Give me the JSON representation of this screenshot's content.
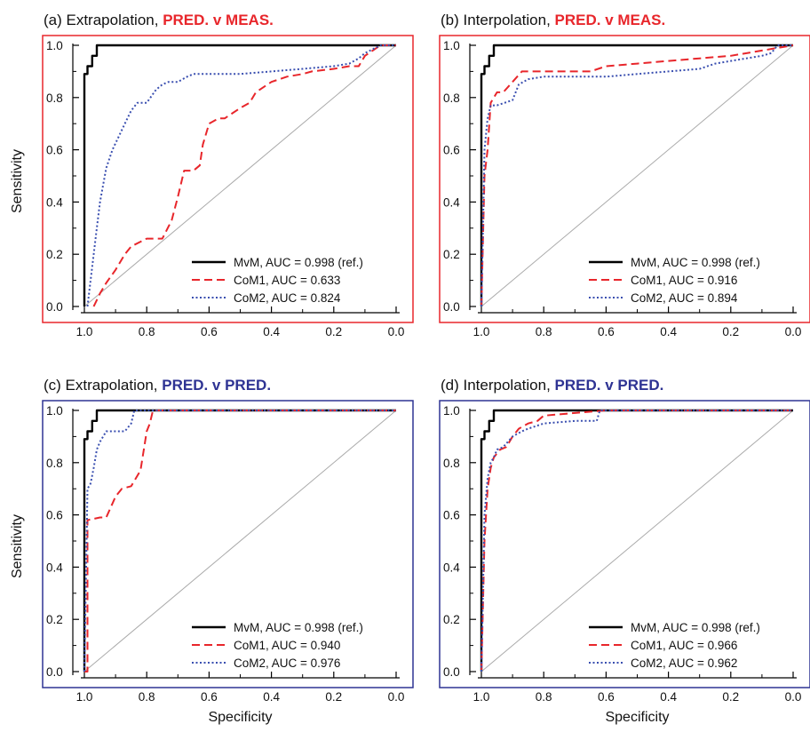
{
  "chart_data": [
    {
      "type": "line",
      "title_prefix": "(a) Extrapolation, ",
      "title_highlight": "PRED. v MEAS.",
      "highlight_color": "#e8262b",
      "frame_color": "#e8262b",
      "xlabel": "",
      "ylabel": "Sensitivity",
      "xlim": [
        1.0,
        0.0
      ],
      "ylim": [
        0.0,
        1.0
      ],
      "xticks": [
        "1.0",
        "0.8",
        "0.6",
        "0.4",
        "0.2",
        "0.0"
      ],
      "yticks": [
        "0.0",
        "0.2",
        "0.4",
        "0.6",
        "0.8",
        "1.0"
      ],
      "legend_position": "bottom-right",
      "reference_line": true,
      "series": [
        {
          "name": "MvM, AUC = 0.998 (ref.)",
          "color": "#000000",
          "dash": "solid",
          "x": [
            1.0,
            1.0,
            0.99,
            0.99,
            0.975,
            0.975,
            0.96,
            0.96,
            0.0
          ],
          "y": [
            0.0,
            0.89,
            0.89,
            0.92,
            0.92,
            0.96,
            0.96,
            1.0,
            1.0
          ]
        },
        {
          "name": "CoM1, AUC = 0.633",
          "color": "#e8262b",
          "dash": "dashed",
          "x": [
            0.97,
            0.95,
            0.93,
            0.9,
            0.87,
            0.85,
            0.8,
            0.75,
            0.72,
            0.7,
            0.68,
            0.65,
            0.63,
            0.62,
            0.6,
            0.57,
            0.55,
            0.5,
            0.47,
            0.45,
            0.4,
            0.35,
            0.3,
            0.27,
            0.2,
            0.15,
            0.12,
            0.1,
            0.05,
            0.0
          ],
          "y": [
            0.0,
            0.05,
            0.09,
            0.14,
            0.2,
            0.23,
            0.26,
            0.26,
            0.33,
            0.42,
            0.52,
            0.52,
            0.54,
            0.62,
            0.7,
            0.72,
            0.72,
            0.76,
            0.78,
            0.82,
            0.86,
            0.88,
            0.89,
            0.9,
            0.91,
            0.92,
            0.92,
            0.96,
            1.0,
            1.0
          ]
        },
        {
          "name": "CoM2, AUC = 0.824",
          "color": "#3a4fb0",
          "dash": "dotted",
          "x": [
            0.99,
            0.97,
            0.96,
            0.95,
            0.93,
            0.91,
            0.89,
            0.87,
            0.85,
            0.83,
            0.8,
            0.77,
            0.75,
            0.73,
            0.7,
            0.67,
            0.65,
            0.6,
            0.5,
            0.4,
            0.3,
            0.2,
            0.15,
            0.12,
            0.1,
            0.05,
            0.0
          ],
          "y": [
            0.0,
            0.2,
            0.3,
            0.4,
            0.53,
            0.6,
            0.65,
            0.7,
            0.75,
            0.78,
            0.78,
            0.83,
            0.85,
            0.86,
            0.86,
            0.88,
            0.89,
            0.89,
            0.89,
            0.9,
            0.91,
            0.92,
            0.93,
            0.95,
            0.97,
            1.0,
            1.0
          ]
        }
      ]
    },
    {
      "type": "line",
      "title_prefix": "(b) Interpolation, ",
      "title_highlight": "PRED. v MEAS.",
      "highlight_color": "#e8262b",
      "frame_color": "#e8262b",
      "xlabel": "",
      "ylabel": "",
      "xlim": [
        1.0,
        0.0
      ],
      "ylim": [
        0.0,
        1.0
      ],
      "xticks": [
        "1.0",
        "0.8",
        "0.6",
        "0.4",
        "0.2",
        "0.0"
      ],
      "yticks": [
        "0.0",
        "0.2",
        "0.4",
        "0.6",
        "0.8",
        "1.0"
      ],
      "legend_position": "bottom-right",
      "reference_line": true,
      "series": [
        {
          "name": "MvM, AUC = 0.998 (ref.)",
          "color": "#000000",
          "dash": "solid",
          "x": [
            1.0,
            1.0,
            0.99,
            0.99,
            0.975,
            0.975,
            0.96,
            0.96,
            0.0
          ],
          "y": [
            0.0,
            0.89,
            0.89,
            0.92,
            0.92,
            0.96,
            0.96,
            1.0,
            1.0
          ]
        },
        {
          "name": "CoM1, AUC = 0.916",
          "color": "#e8262b",
          "dash": "dashed",
          "x": [
            1.0,
            0.99,
            0.98,
            0.97,
            0.95,
            0.93,
            0.9,
            0.87,
            0.8,
            0.7,
            0.65,
            0.6,
            0.5,
            0.4,
            0.3,
            0.2,
            0.1,
            0.05,
            0.0
          ],
          "y": [
            0.0,
            0.5,
            0.6,
            0.78,
            0.82,
            0.82,
            0.86,
            0.9,
            0.9,
            0.9,
            0.9,
            0.92,
            0.93,
            0.94,
            0.95,
            0.96,
            0.98,
            0.99,
            1.0
          ]
        },
        {
          "name": "CoM2, AUC = 0.894",
          "color": "#3a4fb0",
          "dash": "dotted",
          "x": [
            1.0,
            0.99,
            0.98,
            0.97,
            0.95,
            0.9,
            0.88,
            0.85,
            0.8,
            0.7,
            0.6,
            0.5,
            0.4,
            0.3,
            0.25,
            0.2,
            0.1,
            0.07,
            0.05,
            0.0
          ],
          "y": [
            0.0,
            0.6,
            0.72,
            0.77,
            0.77,
            0.79,
            0.85,
            0.87,
            0.88,
            0.88,
            0.88,
            0.89,
            0.9,
            0.91,
            0.93,
            0.94,
            0.96,
            0.97,
            1.0,
            1.0
          ]
        }
      ]
    },
    {
      "type": "line",
      "title_prefix": "(c) Extrapolation, ",
      "title_highlight": "PRED. v PRED.",
      "highlight_color": "#2e3393",
      "frame_color": "#2e3393",
      "xlabel": "Specificity",
      "ylabel": "Sensitivity",
      "xlim": [
        1.0,
        0.0
      ],
      "ylim": [
        0.0,
        1.0
      ],
      "xticks": [
        "1.0",
        "0.8",
        "0.6",
        "0.4",
        "0.2",
        "0.0"
      ],
      "yticks": [
        "0.0",
        "0.2",
        "0.4",
        "0.6",
        "0.8",
        "1.0"
      ],
      "legend_position": "bottom-right",
      "reference_line": true,
      "series": [
        {
          "name": "MvM, AUC = 0.998 (ref.)",
          "color": "#000000",
          "dash": "solid",
          "x": [
            1.0,
            1.0,
            0.99,
            0.99,
            0.975,
            0.975,
            0.96,
            0.96,
            0.0
          ],
          "y": [
            0.0,
            0.89,
            0.89,
            0.92,
            0.92,
            0.96,
            0.96,
            1.0,
            1.0
          ]
        },
        {
          "name": "CoM1, AUC = 0.940",
          "color": "#e8262b",
          "dash": "dashed",
          "x": [
            1.0,
            0.99,
            0.99,
            0.95,
            0.93,
            0.9,
            0.88,
            0.85,
            0.82,
            0.8,
            0.79,
            0.78,
            0.0
          ],
          "y": [
            0.0,
            0.0,
            0.58,
            0.59,
            0.59,
            0.67,
            0.7,
            0.71,
            0.77,
            0.92,
            0.95,
            1.0,
            1.0
          ]
        },
        {
          "name": "CoM2, AUC = 0.976",
          "color": "#3a4fb0",
          "dash": "dotted",
          "x": [
            1.0,
            0.99,
            0.98,
            0.97,
            0.96,
            0.95,
            0.93,
            0.9,
            0.87,
            0.85,
            0.84,
            0.0
          ],
          "y": [
            0.0,
            0.7,
            0.72,
            0.78,
            0.85,
            0.88,
            0.92,
            0.92,
            0.92,
            0.95,
            1.0,
            1.0
          ]
        }
      ]
    },
    {
      "type": "line",
      "title_prefix": "(d) Interpolation, ",
      "title_highlight": "PRED. v PRED.",
      "highlight_color": "#2e3393",
      "frame_color": "#2e3393",
      "xlabel": "Specificity",
      "ylabel": "",
      "xlim": [
        1.0,
        0.0
      ],
      "ylim": [
        0.0,
        1.0
      ],
      "xticks": [
        "1.0",
        "0.8",
        "0.6",
        "0.4",
        "0.2",
        "0.0"
      ],
      "yticks": [
        "0.0",
        "0.2",
        "0.4",
        "0.6",
        "0.8",
        "1.0"
      ],
      "legend_position": "bottom-right",
      "reference_line": true,
      "series": [
        {
          "name": "MvM, AUC = 0.998 (ref.)",
          "color": "#000000",
          "dash": "solid",
          "x": [
            1.0,
            1.0,
            0.99,
            0.99,
            0.975,
            0.975,
            0.96,
            0.96,
            0.0
          ],
          "y": [
            0.0,
            0.89,
            0.89,
            0.92,
            0.92,
            0.96,
            0.96,
            1.0,
            1.0
          ]
        },
        {
          "name": "CoM1, AUC = 0.966",
          "color": "#e8262b",
          "dash": "dashed",
          "x": [
            1.0,
            0.99,
            0.98,
            0.97,
            0.96,
            0.94,
            0.92,
            0.9,
            0.88,
            0.85,
            0.82,
            0.8,
            0.7,
            0.6,
            0.0
          ],
          "y": [
            0.0,
            0.5,
            0.7,
            0.78,
            0.82,
            0.85,
            0.86,
            0.9,
            0.93,
            0.95,
            0.96,
            0.98,
            0.99,
            1.0,
            1.0
          ]
        },
        {
          "name": "CoM2, AUC = 0.962",
          "color": "#3a4fb0",
          "dash": "dotted",
          "x": [
            1.0,
            0.99,
            0.98,
            0.97,
            0.96,
            0.95,
            0.93,
            0.9,
            0.87,
            0.85,
            0.8,
            0.7,
            0.63,
            0.62,
            0.0
          ],
          "y": [
            0.0,
            0.6,
            0.74,
            0.8,
            0.82,
            0.85,
            0.86,
            0.9,
            0.92,
            0.93,
            0.95,
            0.96,
            0.96,
            1.0,
            1.0
          ]
        }
      ]
    }
  ]
}
